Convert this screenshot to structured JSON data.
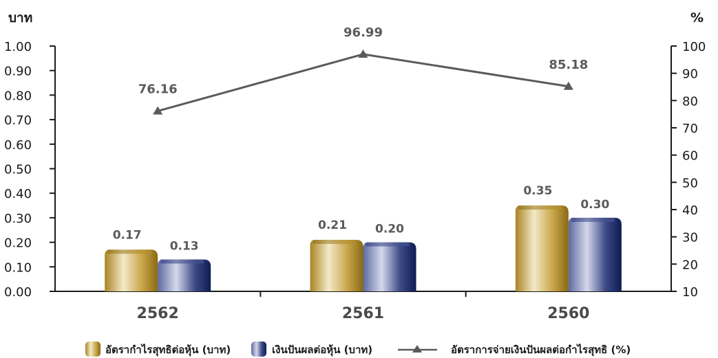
{
  "chart_data": {
    "type": "bar",
    "left_axis_unit": "บาท",
    "right_axis_unit": "%",
    "categories": [
      "2562",
      "2561",
      "2560"
    ],
    "y_left": {
      "lim": [
        0,
        1.0
      ],
      "ticks": [
        "0.00",
        "0.10",
        "0.20",
        "0.30",
        "0.40",
        "0.50",
        "0.60",
        "0.70",
        "0.80",
        "0.90",
        "1.00"
      ]
    },
    "y_right": {
      "lim": [
        10,
        100
      ],
      "ticks": [
        "10",
        "20",
        "30",
        "40",
        "50",
        "60",
        "70",
        "80",
        "90",
        "100"
      ]
    },
    "series": [
      {
        "name": "อัตรากำไรสุทธิต่อหุ้น (บาท)",
        "type": "bar",
        "axis": "left",
        "values": [
          0.17,
          0.21,
          0.35
        ],
        "labels": [
          "0.17",
          "0.21",
          "0.35"
        ],
        "color": "#b8922e"
      },
      {
        "name": "เงินปันผลต่อหุ้น (บาท)",
        "type": "bar",
        "axis": "left",
        "values": [
          0.13,
          0.2,
          0.3
        ],
        "labels": [
          "0.13",
          "0.20",
          "0.30"
        ],
        "color": "#1f2f6e"
      },
      {
        "name": "อัตราการจ่ายเงินปันผลต่อกำไรสุทธิ (%)",
        "type": "line",
        "axis": "right",
        "values": [
          76.16,
          96.99,
          85.18
        ],
        "labels": [
          "76.16",
          "96.99",
          "85.18"
        ],
        "color": "#5a5a5a"
      }
    ],
    "grid": false,
    "legend": "bottom"
  }
}
